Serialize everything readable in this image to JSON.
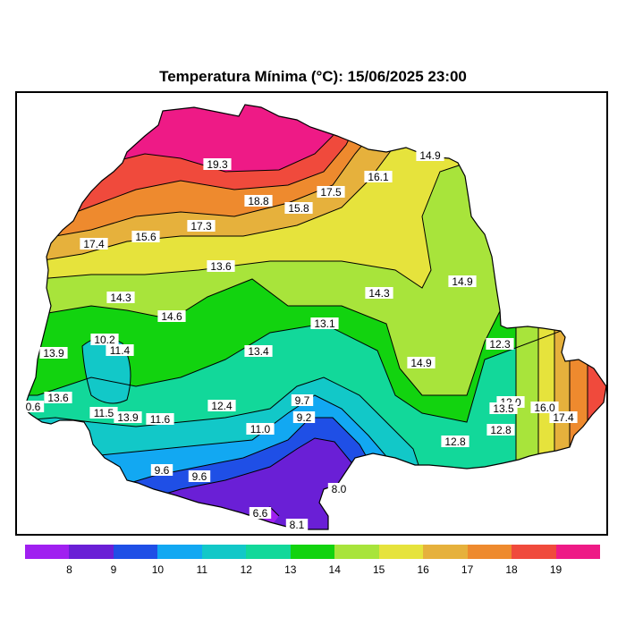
{
  "title": "Temperatura Mínima (°C): 15/06/2025 23:00",
  "legend": {
    "colors": [
      "#a020f0",
      "#6a1fd6",
      "#1f4fe6",
      "#12a8f2",
      "#12c8c8",
      "#12d89a",
      "#12d30f",
      "#a8e43b",
      "#e6e33c",
      "#e6b13c",
      "#ee8a2e",
      "#f04a3c",
      "#ee1a86"
    ],
    "ticks": [
      "8",
      "9",
      "10",
      "11",
      "12",
      "13",
      "14",
      "15",
      "16",
      "17",
      "18",
      "19"
    ]
  },
  "map": {
    "labels": [
      "19.3",
      "18.8",
      "17.5",
      "16.1",
      "14.9",
      "15.8",
      "17.3",
      "15.6",
      "17.4",
      "13.6",
      "14.3",
      "14.9",
      "14.3",
      "14.6",
      "13.1",
      "12.3",
      "10.2",
      "11.4",
      "13.9",
      "13.4",
      "14.9",
      "13.6",
      "0.6",
      "11.5",
      "13.9",
      "11.6",
      "12.4",
      "9.7",
      "9.2",
      "11.0",
      "12.0",
      "13.5",
      "16.0",
      "17.4",
      "12.8",
      "12.8",
      "9.6",
      "9.6",
      "8.0",
      "6.6",
      "8.1"
    ]
  }
}
